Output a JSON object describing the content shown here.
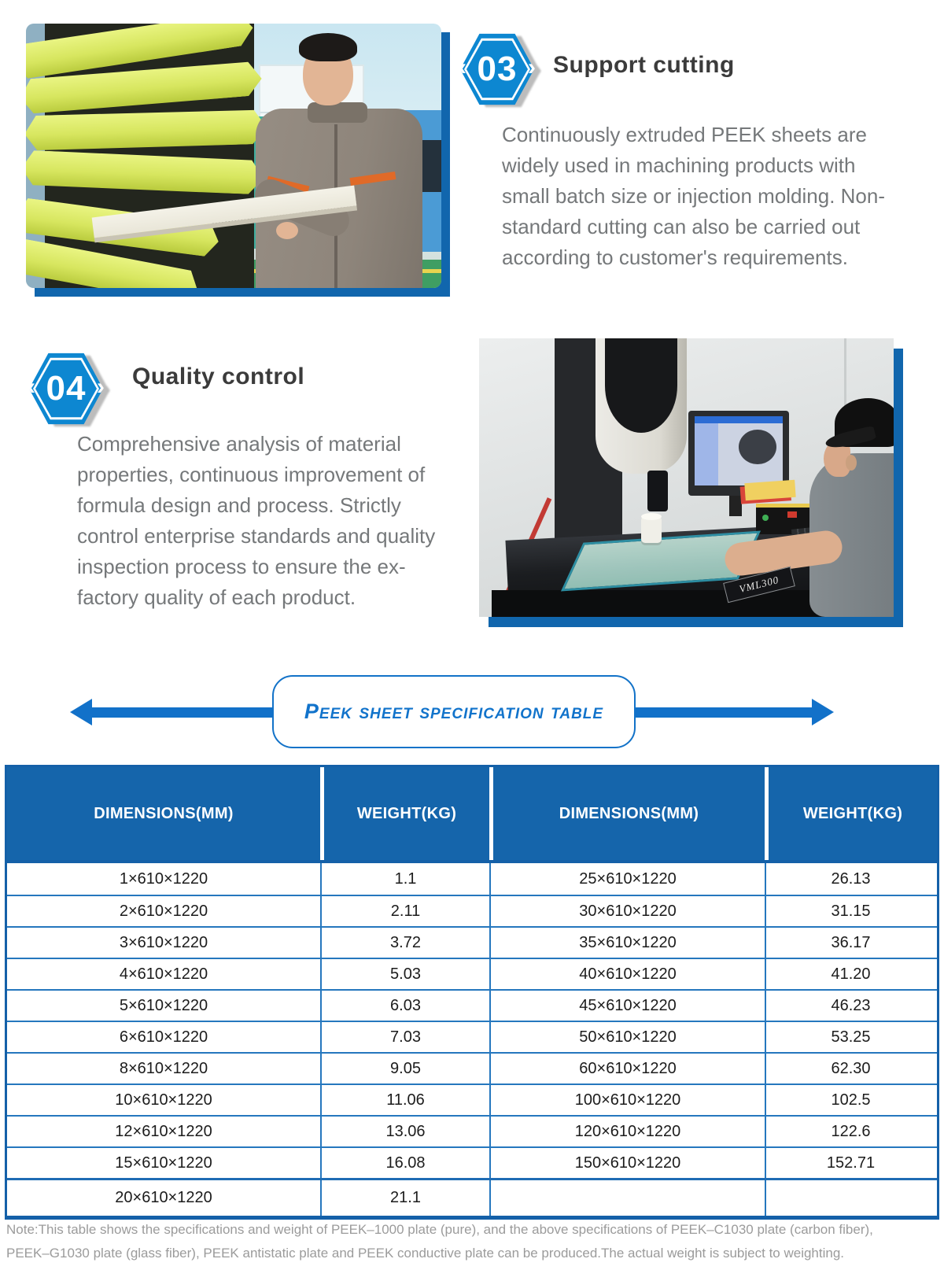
{
  "sections": {
    "support_cutting": {
      "badge_number": "03",
      "title": "Support cutting",
      "body": "Continuously extruded PEEK sheets are widely used in machining products with small batch size or injection molding. Non-standard cutting can also be carried out according to customer's requirements."
    },
    "quality_control": {
      "badge_number": "04",
      "title": "Quality control",
      "body": "Comprehensive analysis of material properties, continuous improvement of formula design and process. Strictly control enterprise standards and quality inspection process to ensure the ex-factory quality of each product."
    }
  },
  "photos": {
    "quality": {
      "machine_label": "VML300"
    }
  },
  "banner": {
    "label": "Peek sheet specification table"
  },
  "spec_table": {
    "headers": [
      "DIMENSIONS(MM)",
      "WEIGHT(KG)",
      "DIMENSIONS(MM)",
      "WEIGHT(KG)"
    ],
    "rows": [
      [
        "1×610×1220",
        "1.1",
        "25×610×1220",
        "26.13"
      ],
      [
        "2×610×1220",
        "2.11",
        "30×610×1220",
        "31.15"
      ],
      [
        "3×610×1220",
        "3.72",
        "35×610×1220",
        "36.17"
      ],
      [
        "4×610×1220",
        "5.03",
        "40×610×1220",
        "41.20"
      ],
      [
        "5×610×1220",
        "6.03",
        "45×610×1220",
        "46.23"
      ],
      [
        "6×610×1220",
        "7.03",
        "50×610×1220",
        "53.25"
      ],
      [
        "8×610×1220",
        "9.05",
        "60×610×1220",
        "62.30"
      ],
      [
        "10×610×1220",
        "11.06",
        "100×610×1220",
        "102.5"
      ],
      [
        "12×610×1220",
        "13.06",
        "120×610×1220",
        "122.6"
      ],
      [
        "15×610×1220",
        "16.08",
        "150×610×1220",
        "152.71"
      ],
      [
        "20×610×1220",
        "21.1",
        "",
        ""
      ]
    ]
  },
  "note_lines": [
    "Note:This table shows the specifications and weight of PEEK–1000 plate (pure), and the above specifications of PEEK–C1030 plate (carbon fiber),",
    "PEEK–G1030 plate (glass fiber), PEEK antistatic plate and PEEK conductive plate can be produced.The actual weight is subject to weighting."
  ],
  "colors": {
    "accent_blue": "#0d87d1",
    "table_header_blue": "#1565ab",
    "table_border_blue": "#2577be",
    "banner_blue": "#1271c9",
    "photo_shadow_blue": "#1166ad"
  }
}
